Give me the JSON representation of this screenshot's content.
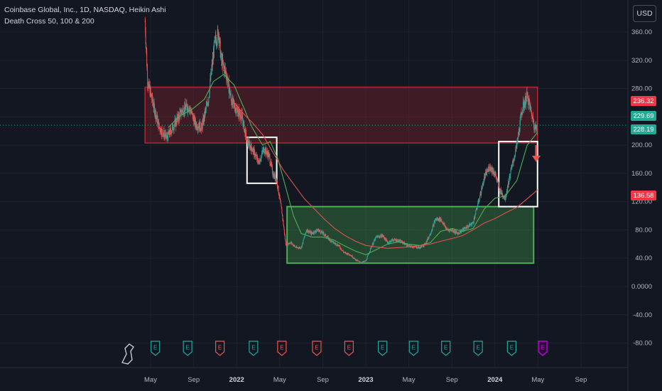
{
  "header": {
    "title": "Coinbase Global, Inc., 1D, NASDAQ, Heikin Ashi",
    "indicator": "Death Cross 50, 100 & 200"
  },
  "currency": "USD",
  "colors": {
    "background": "#131722",
    "up_candle": "#26a69a",
    "down_candle": "#ef5350",
    "ma_green": "#4caf50",
    "ma_red": "#e0504f",
    "resistance_box": "#b22833",
    "support_box": "#4caf50",
    "highlight_box": "#ffffff",
    "earnings_green": "#26a69a",
    "earnings_red": "#ef5350",
    "earnings_purple": "#d500f9"
  },
  "price_tags": [
    {
      "value": "236.32",
      "color": "#f23645"
    },
    {
      "value": "229.69",
      "color": "#22ab94"
    },
    {
      "value": "228.19",
      "color": "#22ab94"
    },
    {
      "value": "136.58",
      "color": "#f23645"
    }
  ],
  "chart_data": {
    "type": "candlestick",
    "title": "Coinbase Global, Inc., 1D, NASDAQ, Heikin Ashi",
    "y_ticks": [
      "360.00",
      "320.00",
      "280.00",
      "240.00",
      "200.00",
      "160.00",
      "120.00",
      "80.00",
      "40.00",
      "0.0000",
      "-40.00",
      "-80.00"
    ],
    "ylim": [
      -100,
      380
    ],
    "x_ticks": [
      {
        "label": "May",
        "bold": false
      },
      {
        "label": "Sep",
        "bold": false
      },
      {
        "label": "2022",
        "bold": true
      },
      {
        "label": "May",
        "bold": false
      },
      {
        "label": "Sep",
        "bold": false
      },
      {
        "label": "2023",
        "bold": true
      },
      {
        "label": "May",
        "bold": false
      },
      {
        "label": "Sep",
        "bold": false
      },
      {
        "label": "2024",
        "bold": true
      },
      {
        "label": "May",
        "bold": false
      },
      {
        "label": "Sep",
        "bold": false
      }
    ],
    "x_tick_months": [
      2021.333,
      2021.667,
      2022.0,
      2022.333,
      2022.667,
      2023.0,
      2023.333,
      2023.667,
      2024.0,
      2024.333,
      2024.667
    ],
    "xlim": [
      2021.0,
      2024.85
    ],
    "price_path": [
      [
        2021.29,
        375
      ],
      [
        2021.31,
        290
      ],
      [
        2021.35,
        260
      ],
      [
        2021.4,
        225
      ],
      [
        2021.46,
        210
      ],
      [
        2021.52,
        230
      ],
      [
        2021.58,
        250
      ],
      [
        2021.63,
        255
      ],
      [
        2021.68,
        230
      ],
      [
        2021.73,
        225
      ],
      [
        2021.78,
        265
      ],
      [
        2021.83,
        345
      ],
      [
        2021.86,
        360
      ],
      [
        2021.88,
        320
      ],
      [
        2021.92,
        300
      ],
      [
        2021.96,
        262
      ],
      [
        2022.0,
        250
      ],
      [
        2022.04,
        240
      ],
      [
        2022.08,
        205
      ],
      [
        2022.12,
        195
      ],
      [
        2022.17,
        175
      ],
      [
        2022.21,
        195
      ],
      [
        2022.25,
        185
      ],
      [
        2022.28,
        160
      ],
      [
        2022.31,
        150
      ],
      [
        2022.35,
        105
      ],
      [
        2022.38,
        60
      ],
      [
        2022.42,
        62
      ],
      [
        2022.46,
        55
      ],
      [
        2022.5,
        55
      ],
      [
        2022.54,
        80
      ],
      [
        2022.58,
        75
      ],
      [
        2022.63,
        80
      ],
      [
        2022.67,
        75
      ],
      [
        2022.71,
        68
      ],
      [
        2022.75,
        62
      ],
      [
        2022.79,
        58
      ],
      [
        2022.83,
        48
      ],
      [
        2022.88,
        45
      ],
      [
        2022.92,
        38
      ],
      [
        2022.96,
        34
      ],
      [
        2023.0,
        36
      ],
      [
        2023.04,
        55
      ],
      [
        2023.08,
        70
      ],
      [
        2023.13,
        72
      ],
      [
        2023.17,
        62
      ],
      [
        2023.21,
        66
      ],
      [
        2023.25,
        65
      ],
      [
        2023.29,
        62
      ],
      [
        2023.33,
        57
      ],
      [
        2023.38,
        56
      ],
      [
        2023.42,
        55
      ],
      [
        2023.46,
        60
      ],
      [
        2023.5,
        75
      ],
      [
        2023.54,
        95
      ],
      [
        2023.58,
        95
      ],
      [
        2023.63,
        80
      ],
      [
        2023.67,
        80
      ],
      [
        2023.71,
        75
      ],
      [
        2023.75,
        80
      ],
      [
        2023.79,
        85
      ],
      [
        2023.83,
        90
      ],
      [
        2023.88,
        125
      ],
      [
        2023.92,
        155
      ],
      [
        2023.96,
        170
      ],
      [
        2024.0,
        160
      ],
      [
        2024.04,
        135
      ],
      [
        2024.08,
        125
      ],
      [
        2024.12,
        160
      ],
      [
        2024.17,
        200
      ],
      [
        2024.21,
        250
      ],
      [
        2024.25,
        270
      ],
      [
        2024.29,
        240
      ],
      [
        2024.31,
        225
      ],
      [
        2024.33,
        222
      ]
    ],
    "series": [
      {
        "name": "MA 50",
        "points": [
          [
            2021.47,
            225
          ],
          [
            2021.55,
            240
          ],
          [
            2021.65,
            250
          ],
          [
            2021.75,
            265
          ],
          [
            2021.82,
            290
          ],
          [
            2021.9,
            300
          ],
          [
            2021.98,
            285
          ],
          [
            2022.05,
            255
          ],
          [
            2022.12,
            225
          ],
          [
            2022.2,
            200
          ],
          [
            2022.26,
            205
          ],
          [
            2022.32,
            180
          ],
          [
            2022.38,
            140
          ],
          [
            2022.44,
            100
          ],
          [
            2022.5,
            75
          ],
          [
            2022.58,
            70
          ],
          [
            2022.66,
            70
          ],
          [
            2022.75,
            66
          ],
          [
            2022.83,
            58
          ],
          [
            2022.92,
            50
          ],
          [
            2023.0,
            45
          ],
          [
            2023.08,
            52
          ],
          [
            2023.17,
            60
          ],
          [
            2023.25,
            63
          ],
          [
            2023.33,
            60
          ],
          [
            2023.42,
            58
          ],
          [
            2023.5,
            62
          ],
          [
            2023.58,
            78
          ],
          [
            2023.67,
            82
          ],
          [
            2023.75,
            78
          ],
          [
            2023.83,
            82
          ],
          [
            2023.92,
            110
          ],
          [
            2024.0,
            125
          ],
          [
            2024.08,
            128
          ],
          [
            2024.17,
            150
          ],
          [
            2024.25,
            200
          ],
          [
            2024.33,
            218
          ]
        ]
      },
      {
        "name": "MA 200",
        "points": [
          [
            2021.98,
            260
          ],
          [
            2022.05,
            245
          ],
          [
            2022.12,
            232
          ],
          [
            2022.2,
            215
          ],
          [
            2022.28,
            190
          ],
          [
            2022.36,
            165
          ],
          [
            2022.44,
            145
          ],
          [
            2022.52,
            125
          ],
          [
            2022.6,
            110
          ],
          [
            2022.68,
            95
          ],
          [
            2022.76,
            82
          ],
          [
            2022.84,
            72
          ],
          [
            2022.92,
            64
          ],
          [
            2023.0,
            58
          ],
          [
            2023.08,
            56
          ],
          [
            2023.17,
            54
          ],
          [
            2023.25,
            55
          ],
          [
            2023.33,
            56
          ],
          [
            2023.42,
            58
          ],
          [
            2023.5,
            60
          ],
          [
            2023.58,
            64
          ],
          [
            2023.67,
            68
          ],
          [
            2023.75,
            72
          ],
          [
            2023.83,
            80
          ],
          [
            2023.92,
            90
          ],
          [
            2024.0,
            96
          ],
          [
            2024.08,
            104
          ],
          [
            2024.17,
            112
          ],
          [
            2024.25,
            124
          ],
          [
            2024.33,
            136.58
          ]
        ]
      }
    ],
    "zones": [
      {
        "kind": "resistance",
        "x0": 2021.29,
        "x1": 2024.33,
        "y0": 203,
        "y1": 282
      },
      {
        "kind": "support",
        "x0": 2022.39,
        "x1": 2024.3,
        "y0": 33,
        "y1": 113
      },
      {
        "kind": "highlight",
        "x0": 2022.08,
        "x1": 2022.31,
        "y0": 146,
        "y1": 211
      },
      {
        "kind": "highlight",
        "x0": 2024.03,
        "x1": 2024.33,
        "y0": 113,
        "y1": 205
      }
    ],
    "arrow": {
      "x": 2024.32,
      "y_from": 200,
      "y_to": 178
    },
    "earnings_events": [
      {
        "x": 2021.37,
        "type": "green"
      },
      {
        "x": 2021.62,
        "type": "green"
      },
      {
        "x": 2021.87,
        "type": "red"
      },
      {
        "x": 2022.13,
        "type": "green"
      },
      {
        "x": 2022.35,
        "type": "red"
      },
      {
        "x": 2022.62,
        "type": "red"
      },
      {
        "x": 2022.87,
        "type": "red"
      },
      {
        "x": 2023.13,
        "type": "green"
      },
      {
        "x": 2023.37,
        "type": "green"
      },
      {
        "x": 2023.62,
        "type": "green"
      },
      {
        "x": 2023.87,
        "type": "green"
      },
      {
        "x": 2024.13,
        "type": "green"
      },
      {
        "x": 2024.37,
        "type": "purple"
      }
    ],
    "earnings_label": "E",
    "grid": true,
    "scale": "linear"
  }
}
